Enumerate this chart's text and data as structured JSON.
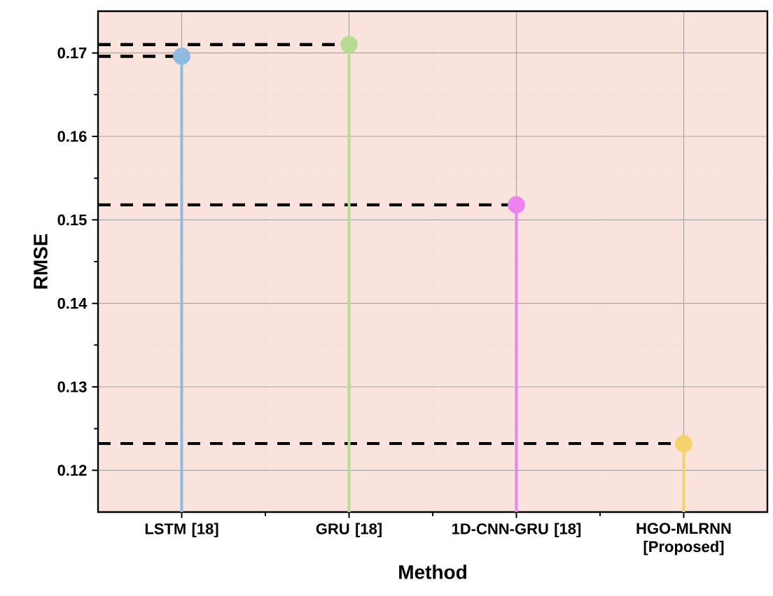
{
  "chart_data": {
    "type": "lollipop",
    "xlabel": "Method",
    "ylabel": "RMSE",
    "categories": [
      "LSTM [18]",
      "GRU [18]",
      "1D-CNN-GRU [18]",
      "HGO-MLRNN [Proposed]"
    ],
    "values": [
      0.1696,
      0.171,
      0.1518,
      0.1232
    ],
    "colors": [
      "#8fbbe0",
      "#b5dc8f",
      "#ee82ee",
      "#f5d36a"
    ],
    "ylim": [
      0.115,
      0.175
    ],
    "yticks": [
      0.12,
      0.13,
      0.14,
      0.15,
      0.16,
      0.17
    ],
    "grid": true,
    "marker": "circle",
    "ref_lines": [
      {
        "axis": "y",
        "value": 0.1696,
        "color": "#000000",
        "line_style": "dashed"
      },
      {
        "axis": "y",
        "value": 0.171,
        "color": "#000000",
        "line_style": "dashed"
      },
      {
        "axis": "y",
        "value": 0.1518,
        "color": "#000000",
        "line_style": "dashed"
      },
      {
        "axis": "y",
        "value": 0.1232,
        "color": "#000000",
        "line_style": "dashed"
      }
    ]
  }
}
